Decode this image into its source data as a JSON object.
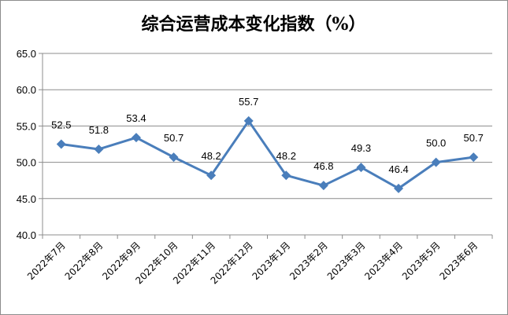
{
  "chart_data": {
    "type": "line",
    "title": "综合运营成本变化指数（%）",
    "categories": [
      "2022年7月",
      "2022年8月",
      "2022年9月",
      "2022年10月",
      "2022年11月",
      "2022年12月",
      "2023年1月",
      "2023年2月",
      "2023年3月",
      "2023年4月",
      "2023年5月",
      "2023年6月"
    ],
    "values": [
      52.5,
      51.8,
      53.4,
      50.7,
      48.2,
      55.7,
      48.2,
      46.8,
      49.3,
      46.4,
      50.0,
      50.7
    ],
    "data_labels": [
      "52.5",
      "51.8",
      "53.4",
      "50.7",
      "48.2",
      "55.7",
      "48.2",
      "46.8",
      "49.3",
      "46.4",
      "50.0",
      "50.7"
    ],
    "y_ticks": [
      "40.0",
      "45.0",
      "50.0",
      "55.0",
      "60.0",
      "65.0"
    ],
    "ylim": [
      40,
      65
    ],
    "grid": true,
    "legend": "none",
    "line_color": "#4a7ebb"
  }
}
